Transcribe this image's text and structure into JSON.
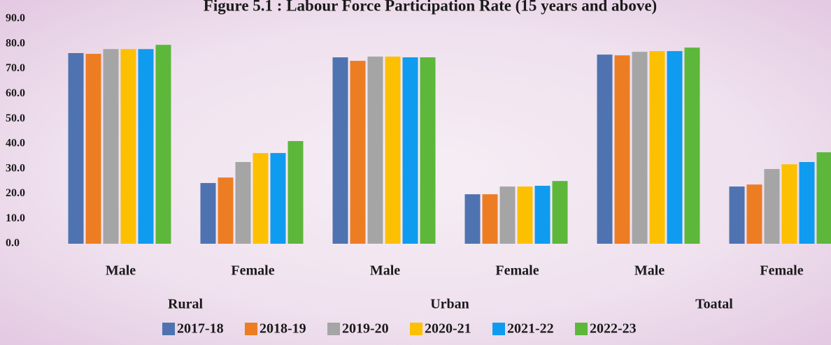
{
  "chart_data": {
    "type": "bar",
    "title": "Figure 5.1 : Labour Force Participation Rate (15 years and above)",
    "categories": [
      "Male",
      "Female",
      "Male",
      "Female",
      "Male",
      "Female"
    ],
    "groups": [
      "Rural",
      "Urban",
      "Toatal"
    ],
    "series": [
      {
        "name": "2017-18",
        "color": "#4e73b0",
        "values": [
          76.3,
          24.3,
          74.6,
          19.8,
          75.7,
          22.9
        ]
      },
      {
        "name": "2018-19",
        "color": "#ed7d23",
        "values": [
          76.0,
          26.5,
          73.2,
          19.8,
          75.4,
          23.7
        ]
      },
      {
        "name": "2019-20",
        "color": "#a5a5a5",
        "values": [
          77.9,
          32.7,
          74.9,
          22.9,
          76.8,
          29.9
        ]
      },
      {
        "name": "2020-21",
        "color": "#fdc000",
        "values": [
          77.9,
          36.3,
          74.9,
          22.9,
          77.1,
          31.8
        ]
      },
      {
        "name": "2021-22",
        "color": "#0f9bef",
        "values": [
          77.9,
          36.3,
          74.6,
          23.2,
          77.1,
          32.7
        ]
      },
      {
        "name": "2022-23",
        "color": "#5db73a",
        "values": [
          79.6,
          41.1,
          74.6,
          25.1,
          78.5,
          36.6
        ]
      }
    ],
    "ylim": [
      0,
      90
    ],
    "yticks": [
      {
        "value": 0,
        "label": "0.0"
      },
      {
        "value": 10,
        "label": "10.0"
      },
      {
        "value": 20,
        "label": "20.0"
      },
      {
        "value": 30,
        "label": "30.0"
      },
      {
        "value": 40,
        "label": "40.0"
      },
      {
        "value": 50,
        "label": "50.0"
      },
      {
        "value": 60,
        "label": "60.0"
      },
      {
        "value": 70,
        "label": "70.0"
      },
      {
        "value": 80,
        "label": "80.0"
      },
      {
        "value": 90,
        "label": "90.0"
      }
    ],
    "grid": false
  }
}
